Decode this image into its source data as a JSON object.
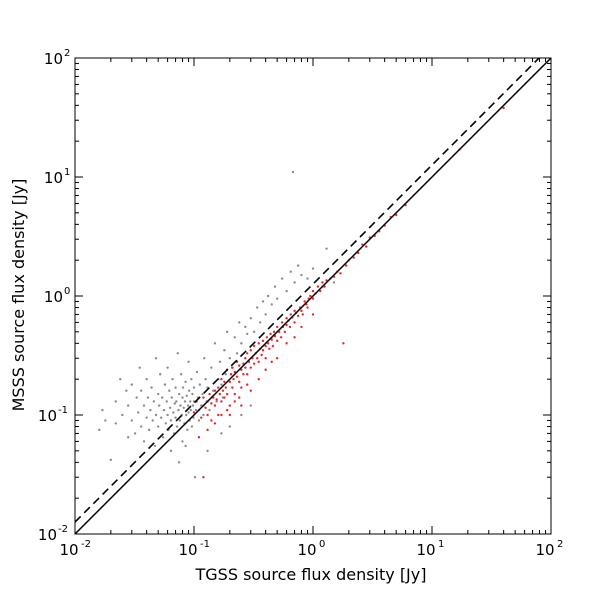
{
  "chart_data": {
    "type": "scatter",
    "title": "",
    "xlabel": "TGSS source flux density [Jy]",
    "ylabel": "MSSS source flux density [Jy]",
    "xscale": "log",
    "yscale": "log",
    "xlim": [
      0.01,
      100
    ],
    "ylim": [
      0.01,
      100
    ],
    "tick_labels": [
      {
        "base": "10",
        "exp": "-2",
        "value": 0.01
      },
      {
        "base": "10",
        "exp": "-1",
        "value": 0.1
      },
      {
        "base": "10",
        "exp": "0",
        "value": 1
      },
      {
        "base": "10",
        "exp": "1",
        "value": 10
      },
      {
        "base": "10",
        "exp": "2",
        "value": 100
      }
    ],
    "grid": false,
    "legend": "none",
    "colors": {
      "red_series": "#e8262b",
      "gray_series": "#8c8c8c",
      "red_line": "#e8262b"
    },
    "series": [
      {
        "color": "gray",
        "points": [
          [
            0.016,
            0.075
          ],
          [
            0.017,
            0.11
          ],
          [
            0.018,
            0.09
          ],
          [
            0.02,
            0.042
          ],
          [
            0.022,
            0.085
          ],
          [
            0.022,
            0.13
          ],
          [
            0.024,
            0.2
          ],
          [
            0.025,
            0.1
          ],
          [
            0.027,
            0.16
          ],
          [
            0.028,
            0.065
          ],
          [
            0.028,
            0.12
          ],
          [
            0.03,
            0.09
          ],
          [
            0.03,
            0.18
          ],
          [
            0.032,
            0.07
          ],
          [
            0.033,
            0.14
          ],
          [
            0.034,
            0.105
          ],
          [
            0.035,
            0.25
          ],
          [
            0.036,
            0.08
          ],
          [
            0.036,
            0.16
          ],
          [
            0.038,
            0.12
          ],
          [
            0.038,
            0.06
          ],
          [
            0.04,
            0.095
          ],
          [
            0.04,
            0.2
          ],
          [
            0.041,
            0.14
          ],
          [
            0.042,
            0.075
          ],
          [
            0.043,
            0.11
          ],
          [
            0.044,
            0.17
          ],
          [
            0.045,
            0.09
          ],
          [
            0.046,
            0.13
          ],
          [
            0.047,
            0.055
          ],
          [
            0.048,
            0.3
          ],
          [
            0.048,
            0.1
          ],
          [
            0.05,
            0.15
          ],
          [
            0.05,
            0.08
          ],
          [
            0.051,
            0.12
          ],
          [
            0.052,
            0.22
          ],
          [
            0.053,
            0.095
          ],
          [
            0.054,
            0.14
          ],
          [
            0.055,
            0.065
          ],
          [
            0.056,
            0.11
          ],
          [
            0.057,
            0.18
          ],
          [
            0.058,
            0.085
          ],
          [
            0.059,
            0.13
          ],
          [
            0.06,
            0.1
          ],
          [
            0.06,
            0.25
          ],
          [
            0.061,
            0.075
          ],
          [
            0.062,
            0.16
          ],
          [
            0.063,
            0.115
          ],
          [
            0.064,
            0.09
          ],
          [
            0.065,
            0.14
          ],
          [
            0.066,
            0.2
          ],
          [
            0.067,
            0.105
          ],
          [
            0.068,
            0.07
          ],
          [
            0.069,
            0.125
          ],
          [
            0.07,
            0.17
          ],
          [
            0.07,
            0.095
          ],
          [
            0.071,
            0.13
          ],
          [
            0.072,
            0.08
          ],
          [
            0.073,
            0.33
          ],
          [
            0.074,
            0.11
          ],
          [
            0.075,
            0.15
          ],
          [
            0.076,
            0.09
          ],
          [
            0.077,
            0.12
          ],
          [
            0.078,
            0.22
          ],
          [
            0.079,
            0.1
          ],
          [
            0.08,
            0.14
          ],
          [
            0.08,
            0.06
          ],
          [
            0.081,
            0.17
          ],
          [
            0.082,
            0.115
          ],
          [
            0.083,
            0.085
          ],
          [
            0.084,
            0.13
          ],
          [
            0.085,
            0.19
          ],
          [
            0.086,
            0.1
          ],
          [
            0.087,
            0.145
          ],
          [
            0.088,
            0.075
          ],
          [
            0.089,
            0.12
          ],
          [
            0.09,
            0.28
          ],
          [
            0.09,
            0.105
          ],
          [
            0.091,
            0.16
          ],
          [
            0.092,
            0.09
          ],
          [
            0.093,
            0.13
          ],
          [
            0.094,
            0.11
          ],
          [
            0.095,
            0.2
          ],
          [
            0.096,
            0.08
          ],
          [
            0.097,
            0.15
          ],
          [
            0.098,
            0.12
          ],
          [
            0.099,
            0.095
          ],
          [
            0.1,
            0.17
          ],
          [
            0.1,
            0.13
          ],
          [
            0.102,
            0.03
          ],
          [
            0.104,
            0.11
          ],
          [
            0.106,
            0.23
          ],
          [
            0.108,
            0.14
          ],
          [
            0.11,
            0.09
          ],
          [
            0.112,
            0.18
          ],
          [
            0.115,
            0.12
          ],
          [
            0.118,
            0.15
          ],
          [
            0.12,
            0.1
          ],
          [
            0.122,
            0.3
          ],
          [
            0.125,
            0.2
          ],
          [
            0.128,
            0.13
          ],
          [
            0.13,
            0.17
          ],
          [
            0.135,
            0.11
          ],
          [
            0.14,
            0.25
          ],
          [
            0.145,
            0.16
          ],
          [
            0.15,
            0.4
          ],
          [
            0.155,
            0.13
          ],
          [
            0.16,
            0.2
          ],
          [
            0.165,
            0.28
          ],
          [
            0.17,
            0.18
          ],
          [
            0.175,
            0.14
          ],
          [
            0.18,
            0.35
          ],
          [
            0.185,
            0.22
          ],
          [
            0.19,
            0.5
          ],
          [
            0.2,
            0.3
          ],
          [
            0.21,
            0.25
          ],
          [
            0.22,
            0.45
          ],
          [
            0.23,
            0.33
          ],
          [
            0.24,
            0.6
          ],
          [
            0.25,
            0.4
          ],
          [
            0.27,
            0.55
          ],
          [
            0.28,
            0.48
          ],
          [
            0.3,
            0.65
          ],
          [
            0.32,
            0.5
          ],
          [
            0.34,
            0.8
          ],
          [
            0.36,
            0.6
          ],
          [
            0.38,
            0.9
          ],
          [
            0.4,
            0.7
          ],
          [
            0.42,
            1.0
          ],
          [
            0.45,
            0.85
          ],
          [
            0.48,
            1.2
          ],
          [
            0.5,
            0.95
          ],
          [
            0.55,
            1.4
          ],
          [
            0.6,
            1.1
          ],
          [
            0.65,
            1.6
          ],
          [
            0.68,
            11
          ],
          [
            0.7,
            1.3
          ],
          [
            0.75,
            1.8
          ],
          [
            0.8,
            1.5
          ],
          [
            0.9,
            1.4
          ],
          [
            1.0,
            1.7
          ],
          [
            1.2,
            1.2
          ],
          [
            1.5,
            1.3
          ],
          [
            1.3,
            2.5
          ],
          [
            0.2,
            0.08
          ],
          [
            0.25,
            0.1
          ],
          [
            0.3,
            0.12
          ],
          [
            0.17,
            0.07
          ],
          [
            0.13,
            0.05
          ],
          [
            0.064,
            0.05
          ],
          [
            0.075,
            0.04
          ],
          [
            0.085,
            0.055
          ]
        ]
      },
      {
        "color": "red",
        "points": [
          [
            0.1,
            0.105
          ],
          [
            0.105,
            0.13
          ],
          [
            0.11,
            0.11
          ],
          [
            0.115,
            0.095
          ],
          [
            0.12,
            0.12
          ],
          [
            0.12,
            0.14
          ],
          [
            0.125,
            0.115
          ],
          [
            0.13,
            0.13
          ],
          [
            0.13,
            0.1
          ],
          [
            0.135,
            0.15
          ],
          [
            0.14,
            0.125
          ],
          [
            0.14,
            0.09
          ],
          [
            0.145,
            0.14
          ],
          [
            0.15,
            0.16
          ],
          [
            0.15,
            0.12
          ],
          [
            0.155,
            0.135
          ],
          [
            0.16,
            0.17
          ],
          [
            0.16,
            0.1
          ],
          [
            0.165,
            0.15
          ],
          [
            0.17,
            0.13
          ],
          [
            0.17,
            0.2
          ],
          [
            0.175,
            0.16
          ],
          [
            0.18,
            0.14
          ],
          [
            0.18,
            0.19
          ],
          [
            0.185,
            0.17
          ],
          [
            0.19,
            0.15
          ],
          [
            0.19,
            0.24
          ],
          [
            0.2,
            0.19
          ],
          [
            0.2,
            0.12
          ],
          [
            0.205,
            0.22
          ],
          [
            0.21,
            0.17
          ],
          [
            0.21,
            0.25
          ],
          [
            0.215,
            0.2
          ],
          [
            0.22,
            0.15
          ],
          [
            0.22,
            0.23
          ],
          [
            0.23,
            0.21
          ],
          [
            0.23,
            0.28
          ],
          [
            0.24,
            0.19
          ],
          [
            0.24,
            0.26
          ],
          [
            0.25,
            0.24
          ],
          [
            0.25,
            0.17
          ],
          [
            0.26,
            0.27
          ],
          [
            0.26,
            0.22
          ],
          [
            0.27,
            0.3
          ],
          [
            0.27,
            0.25
          ],
          [
            0.28,
            0.22
          ],
          [
            0.28,
            0.33
          ],
          [
            0.29,
            0.28
          ],
          [
            0.3,
            0.25
          ],
          [
            0.3,
            0.35
          ],
          [
            0.31,
            0.3
          ],
          [
            0.32,
            0.27
          ],
          [
            0.32,
            0.38
          ],
          [
            0.33,
            0.33
          ],
          [
            0.34,
            0.3
          ],
          [
            0.35,
            0.4
          ],
          [
            0.35,
            0.28
          ],
          [
            0.36,
            0.36
          ],
          [
            0.37,
            0.32
          ],
          [
            0.38,
            0.42
          ],
          [
            0.38,
            0.35
          ],
          [
            0.4,
            0.38
          ],
          [
            0.4,
            0.3
          ],
          [
            0.41,
            0.45
          ],
          [
            0.42,
            0.4
          ],
          [
            0.43,
            0.36
          ],
          [
            0.44,
            0.48
          ],
          [
            0.45,
            0.43
          ],
          [
            0.46,
            0.38
          ],
          [
            0.47,
            0.5
          ],
          [
            0.48,
            0.46
          ],
          [
            0.5,
            0.42
          ],
          [
            0.5,
            0.55
          ],
          [
            0.52,
            0.5
          ],
          [
            0.54,
            0.45
          ],
          [
            0.55,
            0.6
          ],
          [
            0.56,
            0.55
          ],
          [
            0.58,
            0.5
          ],
          [
            0.6,
            0.65
          ],
          [
            0.6,
            0.57
          ],
          [
            0.62,
            0.62
          ],
          [
            0.64,
            0.55
          ],
          [
            0.65,
            0.7
          ],
          [
            0.67,
            0.66
          ],
          [
            0.7,
            0.6
          ],
          [
            0.7,
            0.75
          ],
          [
            0.72,
            0.72
          ],
          [
            0.75,
            0.68
          ],
          [
            0.78,
            0.8
          ],
          [
            0.8,
            0.75
          ],
          [
            0.82,
            0.7
          ],
          [
            0.85,
            0.9
          ],
          [
            0.88,
            0.85
          ],
          [
            0.9,
            0.8
          ],
          [
            0.92,
            0.95
          ],
          [
            0.95,
            1.0
          ],
          [
            1.0,
            0.95
          ],
          [
            1.0,
            1.1
          ],
          [
            1.05,
            1.05
          ],
          [
            1.1,
            1.2
          ],
          [
            1.15,
            1.1
          ],
          [
            1.2,
            1.3
          ],
          [
            1.25,
            1.2
          ],
          [
            1.3,
            1.35
          ],
          [
            1.4,
            1.4
          ],
          [
            1.5,
            1.45
          ],
          [
            1.6,
            1.6
          ],
          [
            1.7,
            1.55
          ],
          [
            1.8,
            0.4
          ],
          [
            1.9,
            1.8
          ],
          [
            2.0,
            2.0
          ],
          [
            2.2,
            2.1
          ],
          [
            2.4,
            2.3
          ],
          [
            2.6,
            2.7
          ],
          [
            2.8,
            2.6
          ],
          [
            3.0,
            3.1
          ],
          [
            3.3,
            3.2
          ],
          [
            3.6,
            3.5
          ],
          [
            4.0,
            3.9
          ],
          [
            4.5,
            4.6
          ],
          [
            5.0,
            4.8
          ],
          [
            6.0,
            5.8
          ],
          [
            17,
            17
          ],
          [
            40,
            38
          ],
          [
            0.12,
            0.03
          ],
          [
            0.2,
            0.1
          ],
          [
            0.25,
            0.12
          ],
          [
            0.3,
            0.16
          ],
          [
            0.35,
            0.2
          ],
          [
            0.4,
            0.24
          ],
          [
            0.45,
            0.28
          ],
          [
            0.5,
            0.3
          ],
          [
            0.6,
            0.4
          ],
          [
            0.7,
            0.45
          ],
          [
            0.8,
            0.55
          ],
          [
            1.0,
            0.7
          ],
          [
            0.11,
            0.065
          ],
          [
            0.13,
            0.075
          ],
          [
            0.15,
            0.085
          ],
          [
            0.17,
            0.1
          ],
          [
            0.19,
            0.11
          ],
          [
            0.22,
            0.13
          ],
          [
            0.24,
            0.14
          ],
          [
            0.28,
            0.18
          ]
        ]
      }
    ],
    "lines": [
      {
        "style": "solid",
        "color": "red",
        "ratio": 1.0
      },
      {
        "style": "solid",
        "color": "black",
        "ratio": 1.0
      },
      {
        "style": "dashed",
        "color": "black",
        "ratio": 1.26
      }
    ]
  }
}
